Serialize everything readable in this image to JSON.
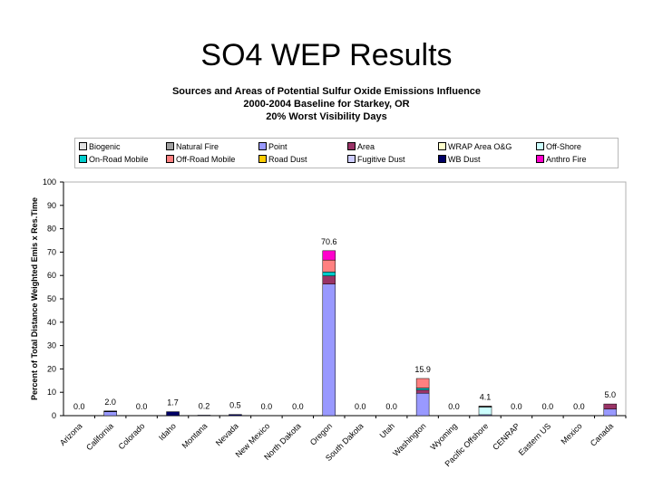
{
  "slide": {
    "title": "SO4 WEP Results"
  },
  "chart_data": {
    "type": "bar",
    "stacked": true,
    "title": "Sources and Areas of Potential Sulfur Oxide Emissions Influence",
    "subtitle_lines": [
      "2000-2004 Baseline for Starkey, OR",
      "20% Worst Visibility Days"
    ],
    "ylabel": "Percent of Total Distance Weighted Emis x Res.Time",
    "xlabel": "",
    "ylim": [
      0,
      100
    ],
    "yticks": [
      0,
      10,
      20,
      30,
      40,
      50,
      60,
      70,
      80,
      90,
      100
    ],
    "grid": false,
    "legend_position": "top",
    "categories": [
      "Arizona",
      "California",
      "Colorado",
      "Idaho",
      "Montana",
      "Nevada",
      "New Mexico",
      "North Dakota",
      "Oregon",
      "South Dakota",
      "Utah",
      "Washington",
      "Wyoming",
      "Pacific Offshore",
      "CENRAP",
      "Eastern US",
      "Mexico",
      "Canada"
    ],
    "totals": [
      0.0,
      2.0,
      0.0,
      1.7,
      0.2,
      0.5,
      0.0,
      0.0,
      70.6,
      0.0,
      0.0,
      15.9,
      0.0,
      4.1,
      0.0,
      0.0,
      0.0,
      5.0
    ],
    "total_labels": [
      "0.0",
      "2.0",
      "0.0",
      "1.7",
      "0.2",
      "0.5",
      "0.0",
      "0.0",
      "70.6",
      "0.0",
      "0.0",
      "15.9",
      "0.0",
      "4.1",
      "0.0",
      "0.0",
      "0.0",
      "5.0"
    ],
    "series": [
      {
        "name": "Biogenic",
        "color": "#e0e0e0",
        "values": [
          0,
          0,
          0,
          0,
          0,
          0,
          0,
          0,
          0,
          0,
          0,
          0,
          0,
          0,
          0,
          0,
          0,
          0
        ]
      },
      {
        "name": "Natural Fire",
        "color": "#a0a0a0",
        "values": [
          0,
          0,
          0,
          0,
          0,
          0,
          0,
          0,
          0,
          0,
          0,
          0,
          0,
          0,
          0,
          0,
          0,
          0
        ]
      },
      {
        "name": "Point",
        "color": "#9999ff",
        "values": [
          0,
          1.7,
          0,
          0,
          0,
          0,
          0,
          0,
          56.3,
          0,
          0,
          9.6,
          0,
          0.4,
          0,
          0,
          0,
          2.8
        ]
      },
      {
        "name": "Area",
        "color": "#993366",
        "values": [
          0,
          0.2,
          0,
          0,
          0,
          0,
          0,
          0,
          3.5,
          0,
          0,
          1.4,
          0,
          0,
          0,
          0,
          0,
          2.2
        ]
      },
      {
        "name": "WRAP Area O&G",
        "color": "#ffffcc",
        "values": [
          0,
          0,
          0,
          0,
          0,
          0,
          0,
          0,
          0,
          0,
          0,
          0,
          0,
          0,
          0,
          0,
          0,
          0
        ]
      },
      {
        "name": "Off-Shore",
        "color": "#ccffff",
        "values": [
          0,
          0,
          0,
          0,
          0,
          0,
          0,
          0,
          0,
          0,
          0,
          0,
          0,
          3.3,
          0,
          0,
          0,
          0
        ]
      },
      {
        "name": "On-Road Mobile",
        "color": "#00cccc",
        "values": [
          0,
          0,
          0,
          0,
          0,
          0,
          0,
          0,
          1.7,
          0,
          0,
          0.8,
          0,
          0.2,
          0,
          0,
          0,
          0
        ]
      },
      {
        "name": "Off-Road Mobile",
        "color": "#ff8080",
        "values": [
          0,
          0,
          0,
          0,
          0,
          0,
          0,
          0,
          5.1,
          0,
          0,
          4.1,
          0,
          0.2,
          0,
          0,
          0,
          0
        ]
      },
      {
        "name": "Road Dust",
        "color": "#ffcc00",
        "values": [
          0,
          0,
          0,
          0,
          0,
          0,
          0,
          0,
          0,
          0,
          0,
          0,
          0,
          0,
          0,
          0,
          0,
          0
        ]
      },
      {
        "name": "Fugitive Dust",
        "color": "#ccccff",
        "values": [
          0,
          0,
          0,
          0,
          0,
          0,
          0,
          0,
          0,
          0,
          0,
          0,
          0,
          0,
          0,
          0,
          0,
          0
        ]
      },
      {
        "name": "WB Dust",
        "color": "#000066",
        "values": [
          0,
          0.1,
          0,
          1.7,
          0.2,
          0.5,
          0,
          0,
          0,
          0,
          0,
          0,
          0,
          0,
          0,
          0,
          0,
          0
        ]
      },
      {
        "name": "Anthro Fire",
        "color": "#ff00cc",
        "values": [
          0,
          0,
          0,
          0,
          0,
          0,
          0,
          0,
          4.0,
          0,
          0,
          0,
          0,
          0,
          0,
          0,
          0,
          0
        ]
      }
    ]
  }
}
